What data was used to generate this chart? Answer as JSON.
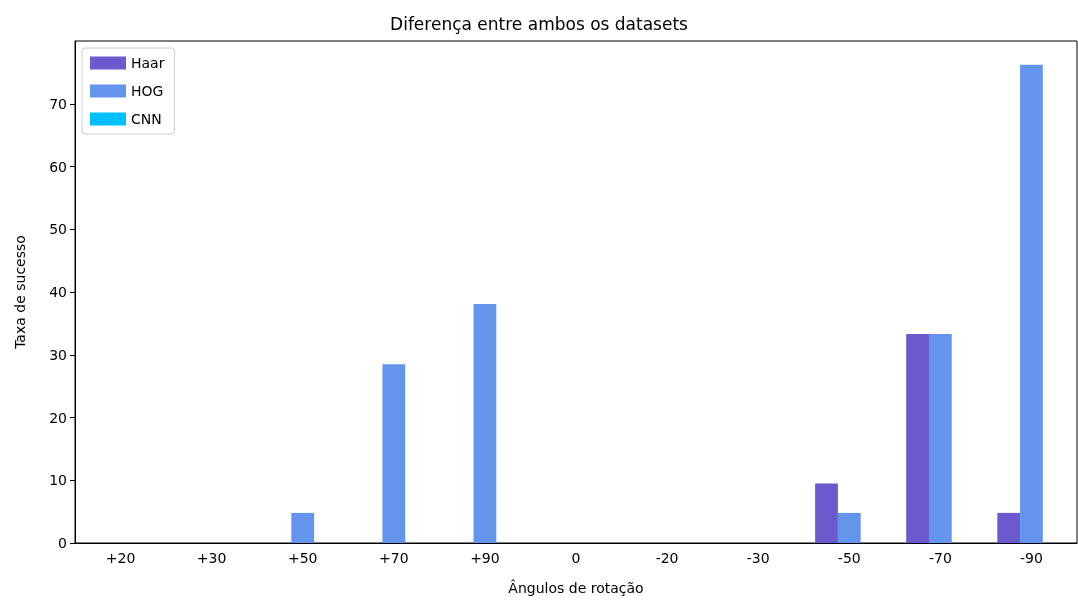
{
  "chart_data": {
    "type": "bar",
    "title": "Diferença entre ambos os datasets",
    "xlabel": "Ângulos de rotação",
    "ylabel": "Taxa de sucesso",
    "categories": [
      "+20",
      "+30",
      "+50",
      "+70",
      "+90",
      "0",
      "-20",
      "-30",
      "-50",
      "-70",
      "-90"
    ],
    "series": [
      {
        "name": "Haar",
        "color": "#6a5acd",
        "values": [
          0,
          0,
          0,
          0,
          0,
          0,
          0,
          0,
          9.5,
          33.3,
          4.8
        ]
      },
      {
        "name": "HOG",
        "color": "#6495ed",
        "values": [
          0,
          0,
          4.8,
          28.5,
          38.1,
          0,
          0,
          0,
          4.8,
          33.3,
          76.2
        ]
      },
      {
        "name": "CNN",
        "color": "#00bfff",
        "values": [
          0,
          0,
          0,
          0,
          0,
          0,
          0,
          0,
          0,
          0,
          0
        ]
      }
    ],
    "ylim": [
      0,
      80
    ],
    "yticks": [
      0,
      10,
      20,
      30,
      40,
      50,
      60,
      70
    ],
    "grid": false,
    "legend": "top left"
  }
}
